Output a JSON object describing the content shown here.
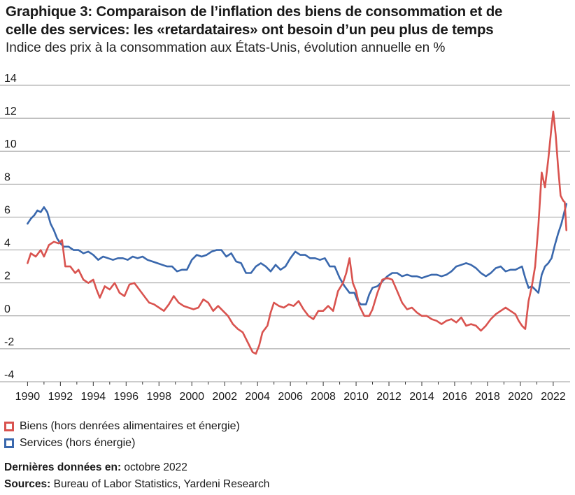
{
  "title_line1": "Graphique 3: Comparaison de l’inflation des biens de consommation et de",
  "title_line2": "celle des services: les «retardataires» ont besoin d’un peu plus de temps",
  "subtitle": "Indice des prix à la consommation aux États-Unis, évolution annuelle en %",
  "legend": [
    {
      "label": "Biens (hors denrées alimentaires et énergie)",
      "color": "#d9534f"
    },
    {
      "label": "Services (hors énergie)",
      "color": "#3a68ad"
    }
  ],
  "footer": {
    "last_data_label": "Dernières données en:",
    "last_data_value": "octobre 2022",
    "sources_label": "Sources:",
    "sources_value": "Bureau of Labor Statistics, Yardeni Research"
  },
  "chart_data": {
    "type": "line",
    "ylim": [
      -4,
      14
    ],
    "xlim": [
      1989.6,
      2022.9
    ],
    "yticks": [
      -4,
      -2,
      0,
      2,
      4,
      6,
      8,
      10,
      12,
      14
    ],
    "xticks": [
      1990,
      1992,
      1994,
      1996,
      1998,
      2000,
      2002,
      2004,
      2006,
      2008,
      2010,
      2012,
      2014,
      2016,
      2018,
      2020,
      2022
    ],
    "grid": true,
    "legend_position": "bottom-left",
    "series": [
      {
        "name": "Biens (hors denrées alimentaires et énergie)",
        "color": "#d9534f",
        "points": [
          [
            1990.0,
            3.2
          ],
          [
            1990.2,
            3.8
          ],
          [
            1990.5,
            3.6
          ],
          [
            1990.8,
            4.0
          ],
          [
            1991.0,
            3.6
          ],
          [
            1991.3,
            4.3
          ],
          [
            1991.6,
            4.5
          ],
          [
            1991.9,
            4.4
          ],
          [
            1992.1,
            4.6
          ],
          [
            1992.3,
            3.0
          ],
          [
            1992.6,
            3.0
          ],
          [
            1992.9,
            2.6
          ],
          [
            1993.1,
            2.8
          ],
          [
            1993.4,
            2.2
          ],
          [
            1993.7,
            2.0
          ],
          [
            1994.0,
            2.2
          ],
          [
            1994.2,
            1.6
          ],
          [
            1994.4,
            1.1
          ],
          [
            1994.7,
            1.8
          ],
          [
            1995.0,
            1.6
          ],
          [
            1995.3,
            2.0
          ],
          [
            1995.6,
            1.4
          ],
          [
            1995.9,
            1.2
          ],
          [
            1996.2,
            1.9
          ],
          [
            1996.5,
            2.0
          ],
          [
            1996.8,
            1.6
          ],
          [
            1997.1,
            1.2
          ],
          [
            1997.4,
            0.8
          ],
          [
            1997.7,
            0.7
          ],
          [
            1998.0,
            0.5
          ],
          [
            1998.3,
            0.3
          ],
          [
            1998.6,
            0.7
          ],
          [
            1998.9,
            1.2
          ],
          [
            1999.2,
            0.8
          ],
          [
            1999.5,
            0.6
          ],
          [
            1999.8,
            0.5
          ],
          [
            2000.1,
            0.4
          ],
          [
            2000.4,
            0.5
          ],
          [
            2000.7,
            1.0
          ],
          [
            2001.0,
            0.8
          ],
          [
            2001.3,
            0.3
          ],
          [
            2001.6,
            0.6
          ],
          [
            2001.9,
            0.3
          ],
          [
            2002.2,
            0.0
          ],
          [
            2002.5,
            -0.5
          ],
          [
            2002.8,
            -0.8
          ],
          [
            2003.1,
            -1.0
          ],
          [
            2003.4,
            -1.6
          ],
          [
            2003.7,
            -2.2
          ],
          [
            2003.9,
            -2.3
          ],
          [
            2004.1,
            -1.8
          ],
          [
            2004.3,
            -1.0
          ],
          [
            2004.6,
            -0.6
          ],
          [
            2004.8,
            0.2
          ],
          [
            2005.0,
            0.8
          ],
          [
            2005.3,
            0.6
          ],
          [
            2005.6,
            0.5
          ],
          [
            2005.9,
            0.7
          ],
          [
            2006.2,
            0.6
          ],
          [
            2006.5,
            0.9
          ],
          [
            2006.8,
            0.4
          ],
          [
            2007.1,
            0.0
          ],
          [
            2007.4,
            -0.2
          ],
          [
            2007.7,
            0.3
          ],
          [
            2008.0,
            0.3
          ],
          [
            2008.3,
            0.6
          ],
          [
            2008.6,
            0.3
          ],
          [
            2008.9,
            1.5
          ],
          [
            2009.2,
            2.0
          ],
          [
            2009.4,
            2.6
          ],
          [
            2009.6,
            3.5
          ],
          [
            2009.8,
            2.0
          ],
          [
            2010.0,
            1.5
          ],
          [
            2010.2,
            0.6
          ],
          [
            2010.5,
            0.0
          ],
          [
            2010.8,
            0.0
          ],
          [
            2011.0,
            0.4
          ],
          [
            2011.3,
            1.4
          ],
          [
            2011.6,
            2.2
          ],
          [
            2011.9,
            2.3
          ],
          [
            2012.2,
            2.2
          ],
          [
            2012.5,
            1.5
          ],
          [
            2012.8,
            0.8
          ],
          [
            2013.1,
            0.4
          ],
          [
            2013.4,
            0.5
          ],
          [
            2013.7,
            0.2
          ],
          [
            2014.0,
            0.0
          ],
          [
            2014.3,
            0.0
          ],
          [
            2014.6,
            -0.2
          ],
          [
            2014.9,
            -0.3
          ],
          [
            2015.2,
            -0.5
          ],
          [
            2015.5,
            -0.3
          ],
          [
            2015.8,
            -0.2
          ],
          [
            2016.1,
            -0.4
          ],
          [
            2016.4,
            -0.1
          ],
          [
            2016.7,
            -0.6
          ],
          [
            2017.0,
            -0.5
          ],
          [
            2017.3,
            -0.6
          ],
          [
            2017.6,
            -0.9
          ],
          [
            2017.9,
            -0.6
          ],
          [
            2018.2,
            -0.2
          ],
          [
            2018.5,
            0.1
          ],
          [
            2018.8,
            0.3
          ],
          [
            2019.1,
            0.5
          ],
          [
            2019.4,
            0.3
          ],
          [
            2019.7,
            0.1
          ],
          [
            2019.9,
            -0.3
          ],
          [
            2020.1,
            -0.6
          ],
          [
            2020.3,
            -0.8
          ],
          [
            2020.5,
            0.9
          ],
          [
            2020.7,
            1.8
          ],
          [
            2020.9,
            3.0
          ],
          [
            2021.1,
            5.5
          ],
          [
            2021.3,
            8.7
          ],
          [
            2021.5,
            7.8
          ],
          [
            2021.7,
            9.5
          ],
          [
            2021.9,
            11.5
          ],
          [
            2022.0,
            12.4
          ],
          [
            2022.15,
            11.0
          ],
          [
            2022.3,
            9.0
          ],
          [
            2022.45,
            7.3
          ],
          [
            2022.6,
            7.0
          ],
          [
            2022.7,
            6.9
          ],
          [
            2022.8,
            5.2
          ]
        ]
      },
      {
        "name": "Services (hors énergie)",
        "color": "#3a68ad",
        "points": [
          [
            1990.0,
            5.6
          ],
          [
            1990.2,
            5.9
          ],
          [
            1990.4,
            6.1
          ],
          [
            1990.6,
            6.4
          ],
          [
            1990.8,
            6.3
          ],
          [
            1991.0,
            6.6
          ],
          [
            1991.2,
            6.3
          ],
          [
            1991.4,
            5.6
          ],
          [
            1991.6,
            5.2
          ],
          [
            1991.8,
            4.7
          ],
          [
            1992.0,
            4.4
          ],
          [
            1992.2,
            4.2
          ],
          [
            1992.5,
            4.2
          ],
          [
            1992.8,
            4.0
          ],
          [
            1993.1,
            4.0
          ],
          [
            1993.4,
            3.8
          ],
          [
            1993.7,
            3.9
          ],
          [
            1994.0,
            3.7
          ],
          [
            1994.3,
            3.4
          ],
          [
            1994.6,
            3.6
          ],
          [
            1994.9,
            3.5
          ],
          [
            1995.2,
            3.4
          ],
          [
            1995.5,
            3.5
          ],
          [
            1995.8,
            3.5
          ],
          [
            1996.1,
            3.4
          ],
          [
            1996.4,
            3.6
          ],
          [
            1996.7,
            3.5
          ],
          [
            1997.0,
            3.6
          ],
          [
            1997.3,
            3.4
          ],
          [
            1997.6,
            3.3
          ],
          [
            1997.9,
            3.2
          ],
          [
            1998.2,
            3.1
          ],
          [
            1998.5,
            3.0
          ],
          [
            1998.8,
            3.0
          ],
          [
            1999.1,
            2.7
          ],
          [
            1999.4,
            2.8
          ],
          [
            1999.7,
            2.8
          ],
          [
            2000.0,
            3.4
          ],
          [
            2000.3,
            3.7
          ],
          [
            2000.6,
            3.6
          ],
          [
            2000.9,
            3.7
          ],
          [
            2001.2,
            3.9
          ],
          [
            2001.5,
            4.0
          ],
          [
            2001.8,
            4.0
          ],
          [
            2002.1,
            3.6
          ],
          [
            2002.4,
            3.8
          ],
          [
            2002.7,
            3.3
          ],
          [
            2003.0,
            3.2
          ],
          [
            2003.3,
            2.6
          ],
          [
            2003.6,
            2.6
          ],
          [
            2003.9,
            3.0
          ],
          [
            2004.2,
            3.2
          ],
          [
            2004.5,
            3.0
          ],
          [
            2004.8,
            2.7
          ],
          [
            2005.1,
            3.1
          ],
          [
            2005.4,
            2.8
          ],
          [
            2005.7,
            3.0
          ],
          [
            2006.0,
            3.5
          ],
          [
            2006.3,
            3.9
          ],
          [
            2006.6,
            3.7
          ],
          [
            2006.9,
            3.7
          ],
          [
            2007.2,
            3.5
          ],
          [
            2007.5,
            3.5
          ],
          [
            2007.8,
            3.4
          ],
          [
            2008.1,
            3.5
          ],
          [
            2008.4,
            3.0
          ],
          [
            2008.7,
            3.0
          ],
          [
            2009.0,
            2.3
          ],
          [
            2009.3,
            1.8
          ],
          [
            2009.6,
            1.4
          ],
          [
            2009.9,
            1.4
          ],
          [
            2010.1,
            0.9
          ],
          [
            2010.3,
            0.7
          ],
          [
            2010.6,
            0.7
          ],
          [
            2010.8,
            1.3
          ],
          [
            2011.0,
            1.7
          ],
          [
            2011.3,
            1.8
          ],
          [
            2011.6,
            2.1
          ],
          [
            2011.9,
            2.4
          ],
          [
            2012.2,
            2.6
          ],
          [
            2012.5,
            2.6
          ],
          [
            2012.8,
            2.4
          ],
          [
            2013.1,
            2.5
          ],
          [
            2013.4,
            2.4
          ],
          [
            2013.7,
            2.4
          ],
          [
            2014.0,
            2.3
          ],
          [
            2014.3,
            2.4
          ],
          [
            2014.6,
            2.5
          ],
          [
            2014.9,
            2.5
          ],
          [
            2015.2,
            2.4
          ],
          [
            2015.5,
            2.5
          ],
          [
            2015.8,
            2.7
          ],
          [
            2016.1,
            3.0
          ],
          [
            2016.4,
            3.1
          ],
          [
            2016.7,
            3.2
          ],
          [
            2017.0,
            3.1
          ],
          [
            2017.3,
            2.9
          ],
          [
            2017.6,
            2.6
          ],
          [
            2017.9,
            2.4
          ],
          [
            2018.2,
            2.6
          ],
          [
            2018.5,
            2.9
          ],
          [
            2018.8,
            3.0
          ],
          [
            2019.1,
            2.7
          ],
          [
            2019.4,
            2.8
          ],
          [
            2019.7,
            2.8
          ],
          [
            2019.9,
            2.9
          ],
          [
            2020.1,
            3.0
          ],
          [
            2020.3,
            2.3
          ],
          [
            2020.5,
            1.7
          ],
          [
            2020.7,
            1.8
          ],
          [
            2020.9,
            1.6
          ],
          [
            2021.1,
            1.4
          ],
          [
            2021.3,
            2.5
          ],
          [
            2021.5,
            3.0
          ],
          [
            2021.7,
            3.2
          ],
          [
            2021.9,
            3.5
          ],
          [
            2022.1,
            4.3
          ],
          [
            2022.3,
            5.0
          ],
          [
            2022.5,
            5.6
          ],
          [
            2022.7,
            6.4
          ],
          [
            2022.8,
            6.8
          ]
        ]
      }
    ]
  }
}
